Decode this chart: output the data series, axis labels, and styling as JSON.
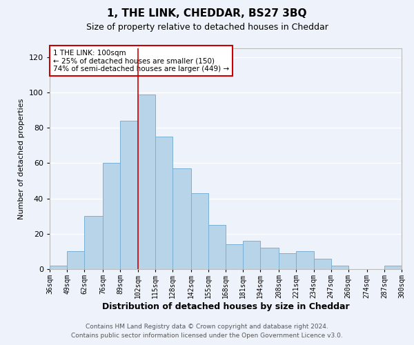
{
  "title": "1, THE LINK, CHEDDAR, BS27 3BQ",
  "subtitle": "Size of property relative to detached houses in Cheddar",
  "xlabel": "Distribution of detached houses by size in Cheddar",
  "ylabel": "Number of detached properties",
  "bar_color": "#b8d4e8",
  "bar_edge_color": "#7ab0d4",
  "background_color": "#eef2fa",
  "grid_color": "#ffffff",
  "vline_x": 102,
  "vline_color": "#cc0000",
  "bin_edges": [
    36,
    49,
    62,
    76,
    89,
    102,
    115,
    128,
    142,
    155,
    168,
    181,
    194,
    208,
    221,
    234,
    247,
    260,
    274,
    287,
    300
  ],
  "bar_heights": [
    2,
    10,
    30,
    60,
    84,
    99,
    75,
    57,
    43,
    25,
    14,
    16,
    12,
    9,
    10,
    6,
    2,
    0,
    0,
    2
  ],
  "annotation_text": "1 THE LINK: 100sqm\n← 25% of detached houses are smaller (150)\n74% of semi-detached houses are larger (449) →",
  "annotation_box_color": "white",
  "annotation_box_edge_color": "#cc0000",
  "ylim": [
    0,
    125
  ],
  "yticks": [
    0,
    20,
    40,
    60,
    80,
    100,
    120
  ],
  "footer_line1": "Contains HM Land Registry data © Crown copyright and database right 2024.",
  "footer_line2": "Contains public sector information licensed under the Open Government Licence v3.0.",
  "tick_labels": [
    "36sqm",
    "49sqm",
    "62sqm",
    "76sqm",
    "89sqm",
    "102sqm",
    "115sqm",
    "128sqm",
    "142sqm",
    "155sqm",
    "168sqm",
    "181sqm",
    "194sqm",
    "208sqm",
    "221sqm",
    "234sqm",
    "247sqm",
    "260sqm",
    "274sqm",
    "287sqm",
    "300sqm"
  ]
}
